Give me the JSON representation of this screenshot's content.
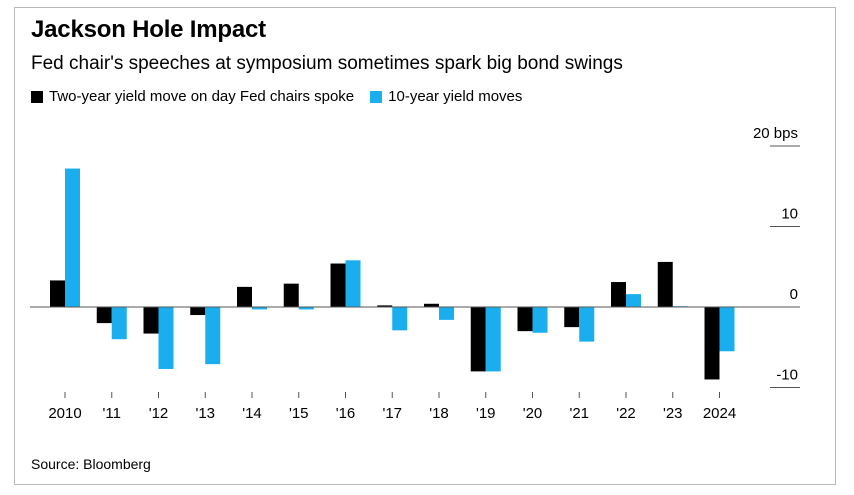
{
  "title": "Jackson Hole Impact",
  "subtitle": "Fed chair's speeches at symposium sometimes spark big bond swings",
  "source": "Source: Bloomberg",
  "colors": {
    "two_year": "#000000",
    "ten_year": "#1aaeef",
    "axis": "#555555"
  },
  "chart_data": {
    "type": "bar",
    "categories": [
      "2010",
      "'11",
      "'12",
      "'13",
      "'14",
      "'15",
      "'16",
      "'17",
      "'18",
      "'19",
      "'20",
      "'21",
      "'22",
      "'23",
      "2024"
    ],
    "series": [
      {
        "name": "Two-year yield move on day Fed chairs spoke",
        "values": [
          3.3,
          -2.0,
          -3.3,
          -1.0,
          2.5,
          2.9,
          5.4,
          0.2,
          0.4,
          -8.0,
          -3.0,
          -2.5,
          3.1,
          5.6,
          -9.0
        ]
      },
      {
        "name": "10-year yield moves",
        "values": [
          17.2,
          -4.0,
          -7.7,
          -7.1,
          -0.3,
          -0.3,
          5.8,
          -2.9,
          -1.6,
          -8.0,
          -3.2,
          -4.3,
          1.6,
          0.1,
          -5.5
        ]
      }
    ],
    "ylim": [
      -10,
      20
    ],
    "yticks": [
      {
        "value": 20,
        "label": "20 bps"
      },
      {
        "value": 10,
        "label": "10"
      },
      {
        "value": 0,
        "label": "0"
      },
      {
        "value": -10,
        "label": "-10"
      }
    ],
    "xlabel": "",
    "ylabel": ""
  }
}
